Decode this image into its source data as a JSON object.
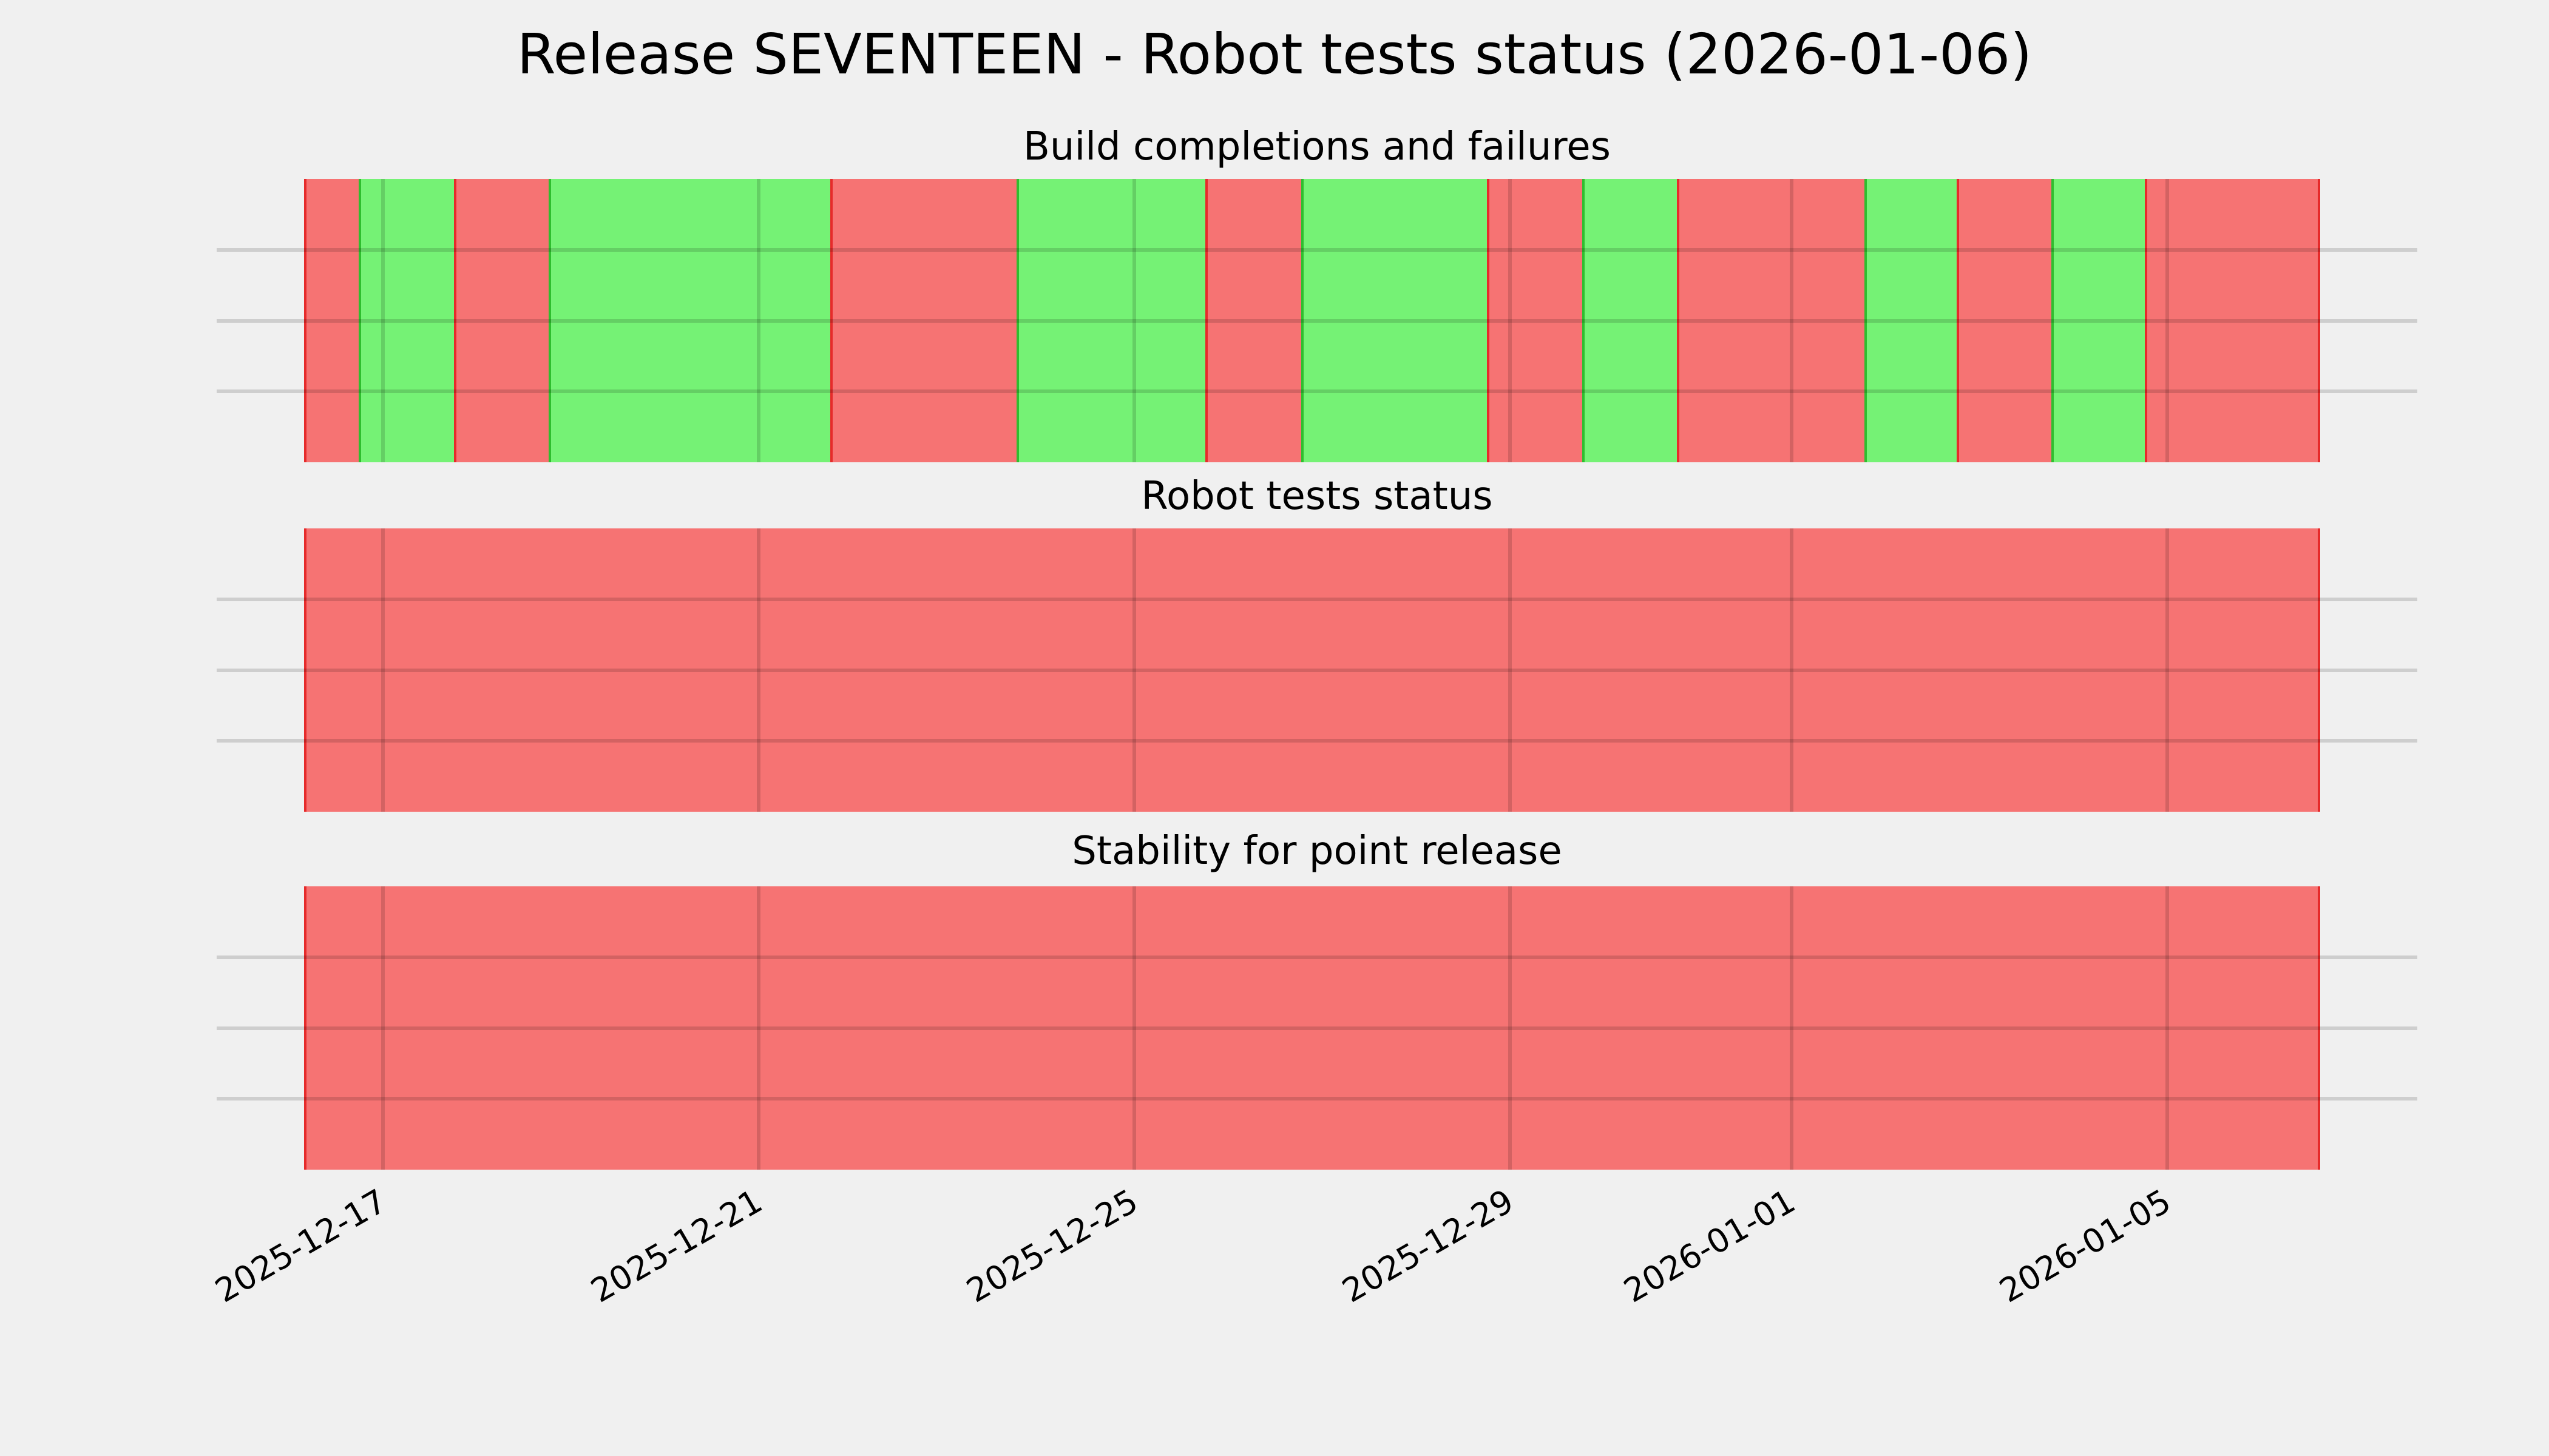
{
  "title": "Release SEVENTEEN - Robot tests status (2026-01-06)",
  "style": {
    "background": "#f0f0f0",
    "fail_fill": "#f67373",
    "pass_fill": "#75f275",
    "fail_edge": "#e62b2b",
    "pass_edge": "#2fbe2f",
    "grid_color": "rgba(0,0,0,0.14)",
    "text_color": "#000000"
  },
  "x_axis": {
    "tick_labels": [
      "2025-12-17",
      "2025-12-21",
      "2025-12-25",
      "2025-12-29",
      "2026-01-01",
      "2026-01-05"
    ],
    "tick_pct": [
      3.91,
      22.55,
      41.18,
      59.81,
      73.78,
      92.41
    ],
    "range_start": "2025-12-16 04:00",
    "range_end": "2026-01-06 15:00",
    "grid": true
  },
  "chart_data": [
    {
      "type": "bar",
      "subtype": "status-timeline",
      "title": "Build completions and failures",
      "legend_pos": "none",
      "grid": true,
      "segments": [
        {
          "status": "fail",
          "start": "2025-12-16 04:00",
          "end": "2025-12-16 18:00",
          "x_pct": 0.0,
          "w_pct": 2.71
        },
        {
          "status": "pass",
          "start": "2025-12-16 18:00",
          "end": "2025-12-17 18:00",
          "x_pct": 2.71,
          "w_pct": 4.73
        },
        {
          "status": "fail",
          "start": "2025-12-17 18:00",
          "end": "2025-12-18 18:00",
          "x_pct": 7.44,
          "w_pct": 4.7
        },
        {
          "status": "pass",
          "start": "2025-12-18 18:00",
          "end": "2025-12-21 18:00",
          "x_pct": 12.13,
          "w_pct": 13.97
        },
        {
          "status": "fail",
          "start": "2025-12-21 18:00",
          "end": "2025-12-23 18:00",
          "x_pct": 26.1,
          "w_pct": 9.24
        },
        {
          "status": "pass",
          "start": "2025-12-23 18:00",
          "end": "2025-12-25 18:00",
          "x_pct": 35.34,
          "w_pct": 9.36
        },
        {
          "status": "fail",
          "start": "2025-12-25 18:00",
          "end": "2025-12-26 18:00",
          "x_pct": 44.7,
          "w_pct": 4.76
        },
        {
          "status": "pass",
          "start": "2025-12-26 18:00",
          "end": "2025-12-28 18:00",
          "x_pct": 49.46,
          "w_pct": 9.21
        },
        {
          "status": "fail",
          "start": "2025-12-28 18:00",
          "end": "2025-12-29 18:00",
          "x_pct": 58.67,
          "w_pct": 4.73
        },
        {
          "status": "pass",
          "start": "2025-12-29 18:00",
          "end": "2025-12-30 18:00",
          "x_pct": 63.4,
          "w_pct": 4.7
        },
        {
          "status": "fail",
          "start": "2025-12-30 18:00",
          "end": "2026-01-01 18:00",
          "x_pct": 68.09,
          "w_pct": 9.3
        },
        {
          "status": "pass",
          "start": "2026-01-01 18:00",
          "end": "2026-01-02 18:00",
          "x_pct": 77.39,
          "w_pct": 4.58
        },
        {
          "status": "fail",
          "start": "2026-01-02 18:00",
          "end": "2026-01-03 18:00",
          "x_pct": 81.97,
          "w_pct": 4.7
        },
        {
          "status": "pass",
          "start": "2026-01-03 18:00",
          "end": "2026-01-04 18:00",
          "x_pct": 86.67,
          "w_pct": 4.63
        },
        {
          "status": "fail",
          "start": "2026-01-04 18:00",
          "end": "2026-01-06 15:00",
          "x_pct": 91.3,
          "w_pct": 8.7
        }
      ]
    },
    {
      "type": "bar",
      "subtype": "status-timeline",
      "title": "Robot tests status",
      "legend_pos": "none",
      "grid": true,
      "segments": [
        {
          "status": "fail",
          "start": "2025-12-16 04:00",
          "end": "2026-01-06 15:00",
          "x_pct": 0.0,
          "w_pct": 100.0
        }
      ]
    },
    {
      "type": "bar",
      "subtype": "status-timeline",
      "title": "Stability for point release",
      "legend_pos": "none",
      "grid": true,
      "segments": [
        {
          "status": "fail",
          "start": "2025-12-16 04:00",
          "end": "2026-01-06 15:00",
          "x_pct": 0.0,
          "w_pct": 100.0
        }
      ]
    }
  ]
}
